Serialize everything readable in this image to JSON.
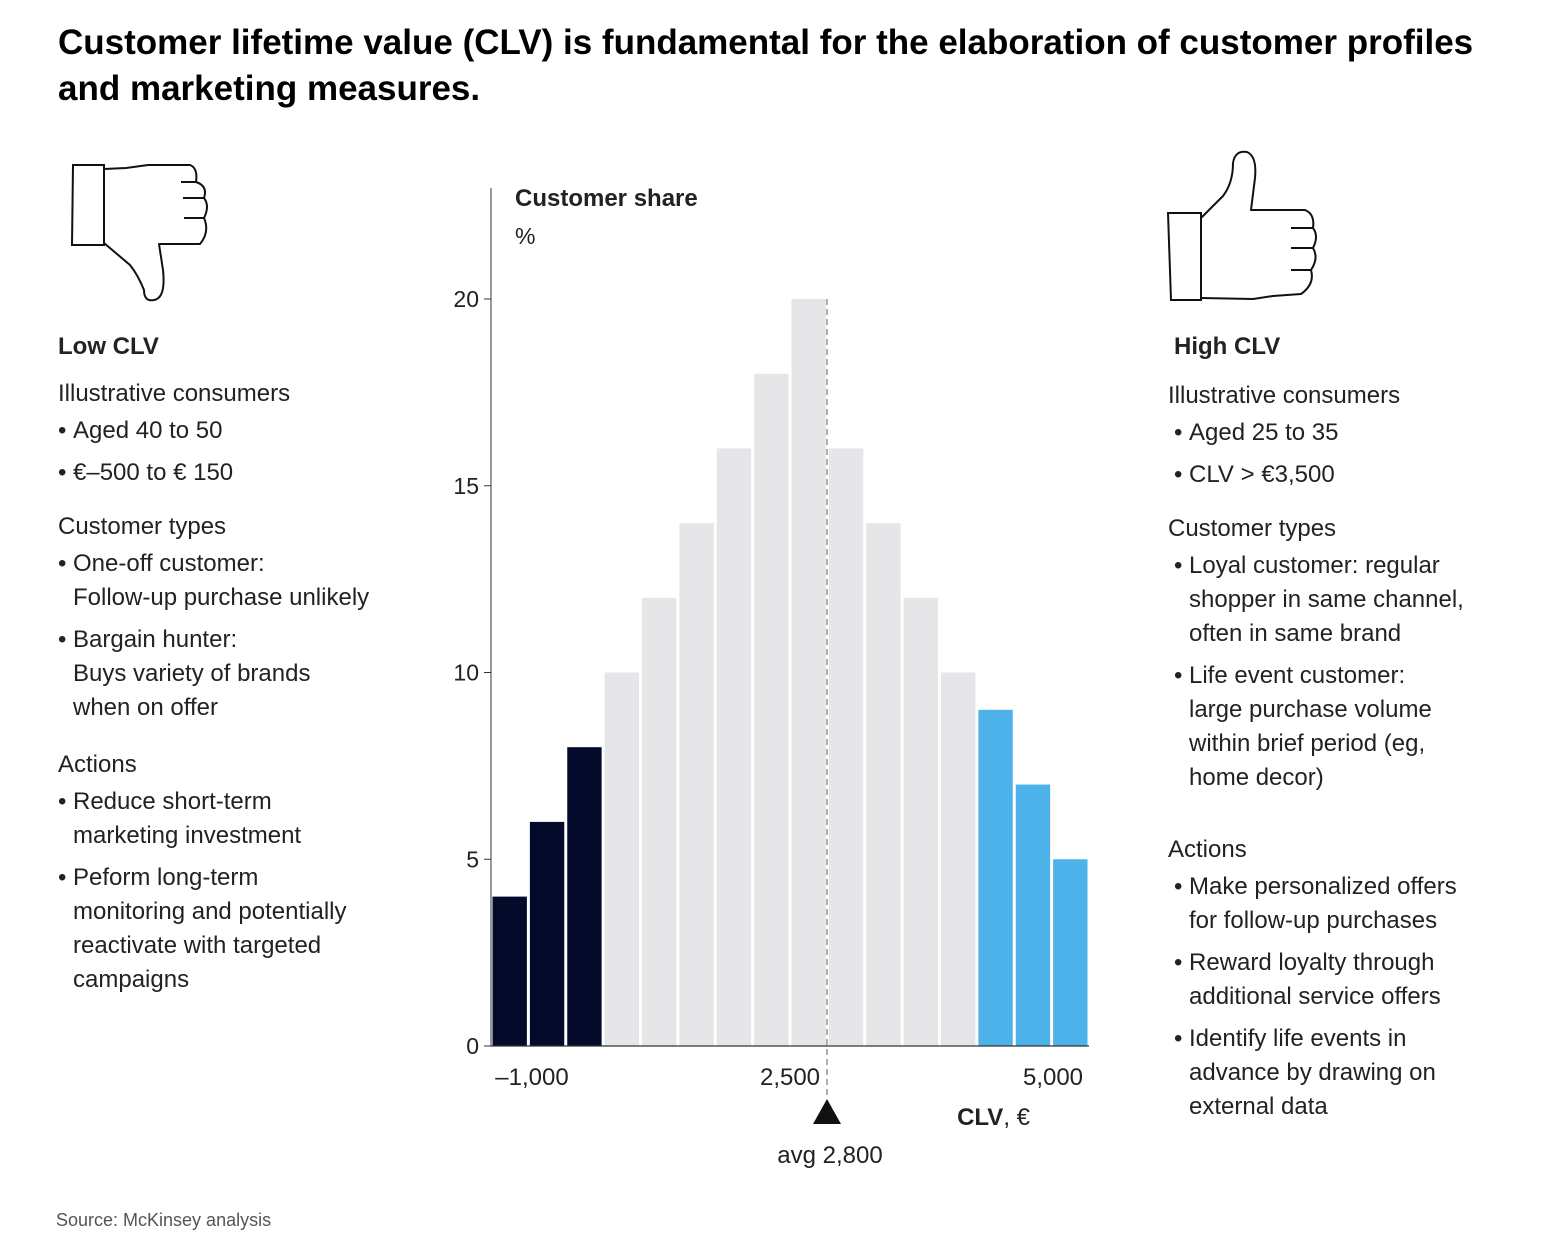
{
  "title": "Customer lifetime value (CLV) is fundamental for the elaboration of customer profiles and marketing measures.",
  "left": {
    "icon": "thumbs-down-icon",
    "heading": "Low CLV",
    "sections": [
      {
        "head": "Illustrative consumers",
        "items": [
          [
            "Aged 40 to 50"
          ],
          [
            "€–500 to € 150"
          ]
        ]
      },
      {
        "head": "Customer types",
        "items": [
          [
            "One-off customer:",
            "Follow-up purchase unlikely"
          ],
          [
            "Bargain hunter:",
            "Buys variety of brands",
            "when on offer"
          ]
        ]
      },
      {
        "head": "Actions",
        "items": [
          [
            "Reduce short-term",
            "marketing investment"
          ],
          [
            "Peform long-term",
            "monitoring and potentially",
            "reactivate with targeted",
            "campaigns"
          ]
        ]
      }
    ]
  },
  "right": {
    "icon": "thumbs-up-icon",
    "heading": "High CLV",
    "sections": [
      {
        "head": "Illustrative consumers",
        "items": [
          [
            "Aged 25 to 35"
          ],
          [
            "CLV > €3,500"
          ]
        ]
      },
      {
        "head": "Customer types",
        "items": [
          [
            "Loyal customer: regular",
            "shopper in same channel,",
            "often in same brand"
          ],
          [
            "Life event customer:",
            "large purchase volume",
            "within brief period (eg,",
            "home decor)"
          ]
        ]
      },
      {
        "head": "Actions",
        "items": [
          [
            "Make personalized offers",
            "for follow-up purchases"
          ],
          [
            "Reward loyalty through",
            "additional service offers"
          ],
          [
            "Identify life events in",
            "advance by drawing on",
            "external data"
          ]
        ]
      }
    ]
  },
  "chart_data": {
    "type": "bar",
    "ylabel": "Customer share",
    "yunit": "%",
    "xlabel_bold": "CLV",
    "xlabel_unit": ", €",
    "ylim": [
      0,
      24
    ],
    "yticks": [
      0,
      5,
      10,
      15,
      20
    ],
    "xticks": [
      {
        "value": -1000,
        "label": "–1,000"
      },
      {
        "value": 2500,
        "label": "2,500"
      },
      {
        "value": 5000,
        "label": "5,000"
      }
    ],
    "values": [
      4,
      6,
      8,
      10,
      12,
      14,
      16,
      18,
      20,
      16,
      14,
      12,
      10,
      9,
      7,
      5
    ],
    "groups": [
      "low",
      "low",
      "low",
      "mid",
      "mid",
      "mid",
      "mid",
      "mid",
      "mid",
      "mid",
      "mid",
      "mid",
      "mid",
      "high",
      "high",
      "high"
    ],
    "colors": {
      "low": "#030a2a",
      "mid": "#e6e6e8",
      "high": "#4db1ea"
    },
    "average": {
      "value": 2800,
      "label": "avg 2,800"
    },
    "grid": false
  },
  "source": "Source: McKinsey analysis"
}
